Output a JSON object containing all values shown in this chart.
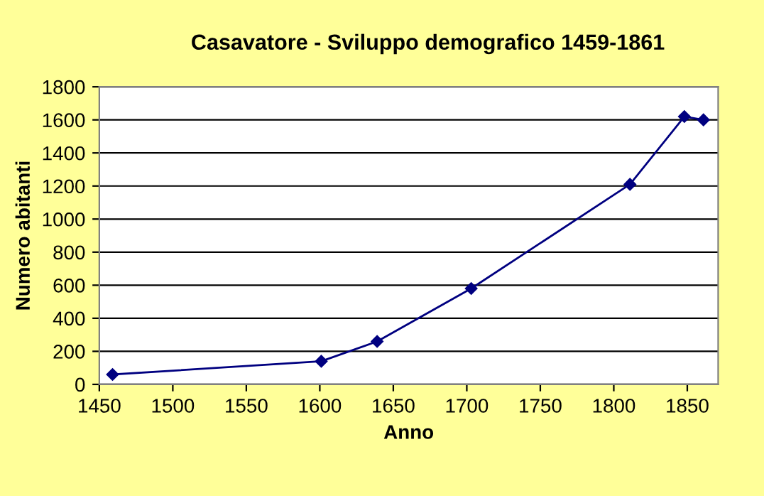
{
  "chart_data": {
    "type": "line",
    "title": "Casavatore - Sviluppo demografico 1459-1861",
    "xlabel": "Anno",
    "ylabel": "Numero abitanti",
    "x": [
      1459,
      1601,
      1639,
      1703,
      1811,
      1848,
      1861
    ],
    "series": [
      {
        "color": "#000080",
        "values": [
          60,
          140,
          260,
          580,
          1210,
          1620,
          1600
        ]
      }
    ],
    "xlim": [
      1450,
      1871
    ],
    "xticks": [
      1450,
      1500,
      1550,
      1600,
      1650,
      1700,
      1750,
      1800,
      1850
    ],
    "ylim": [
      0,
      1800
    ],
    "yticks": [
      0,
      200,
      400,
      600,
      800,
      1000,
      1200,
      1400,
      1600,
      1800
    ],
    "grid": "y",
    "marker": "diamond",
    "line_style": "solid",
    "legend": false
  }
}
